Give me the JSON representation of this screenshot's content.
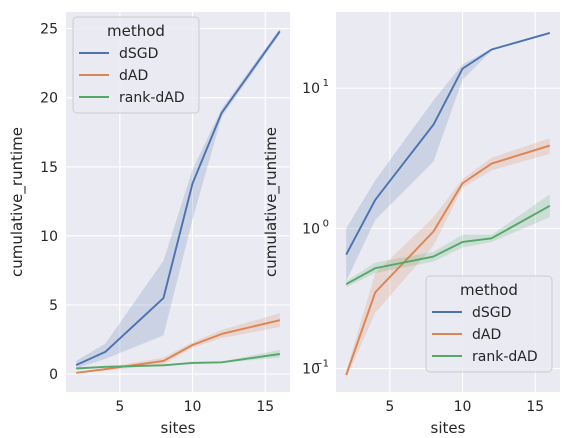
{
  "chart_data": [
    {
      "type": "line",
      "title": "",
      "xlabel": "sites",
      "ylabel": "cumulative_runtime",
      "xscale": "linear",
      "yscale": "linear",
      "xlim": [
        1.3,
        16.7
      ],
      "ylim": [
        -1.3,
        26.2
      ],
      "xticks": [
        5,
        10,
        15
      ],
      "xtick_labels": [
        "5",
        "10",
        "15"
      ],
      "yticks": [
        0,
        5,
        10,
        15,
        20,
        25
      ],
      "ytick_labels": [
        "0",
        "5",
        "10",
        "15",
        "20",
        "25"
      ],
      "grid": true,
      "legend": {
        "title": "method",
        "placement": "upper-left"
      },
      "x": [
        2,
        4,
        8,
        10,
        12,
        16
      ],
      "series": [
        {
          "name": "dSGD",
          "color": "#4c72b0",
          "values": [
            0.65,
            1.6,
            5.5,
            13.8,
            18.9,
            24.8
          ],
          "band_low": [
            0.4,
            1.1,
            2.8,
            11.2,
            18.6,
            24.6
          ],
          "band_high": [
            0.95,
            2.2,
            8.2,
            14.8,
            19.2,
            25.0
          ]
        },
        {
          "name": "dAD",
          "color": "#dd8452",
          "values": [
            0.09,
            0.35,
            0.95,
            2.1,
            2.9,
            3.9
          ],
          "band_low": [
            0.08,
            0.25,
            0.7,
            1.9,
            2.6,
            3.4
          ],
          "band_high": [
            0.1,
            0.45,
            1.2,
            2.3,
            3.2,
            4.4
          ]
        },
        {
          "name": "rank-dAD",
          "color": "#55a868",
          "values": [
            0.4,
            0.52,
            0.63,
            0.8,
            0.85,
            1.45
          ],
          "band_low": [
            0.38,
            0.48,
            0.58,
            0.72,
            0.8,
            1.2
          ],
          "band_high": [
            0.42,
            0.56,
            0.68,
            0.9,
            0.9,
            1.75
          ]
        }
      ]
    },
    {
      "type": "line",
      "title": "",
      "xlabel": "sites",
      "ylabel": "cumulative_runtime",
      "xscale": "linear",
      "yscale": "log",
      "xlim": [
        1.3,
        16.7
      ],
      "ylim": [
        0.068,
        35
      ],
      "xticks": [
        5,
        10,
        15
      ],
      "xtick_labels": [
        "5",
        "10",
        "15"
      ],
      "yticks": [
        0.1,
        1,
        10
      ],
      "ytick_labels": [
        "10",
        "10",
        "10"
      ],
      "ytick_exponents": [
        "−1",
        "0",
        "1"
      ],
      "grid": true,
      "legend": {
        "title": "method",
        "placement": "lower-right"
      },
      "x": [
        2,
        4,
        8,
        10,
        12,
        16
      ],
      "series": [
        {
          "name": "dSGD",
          "color": "#4c72b0",
          "values": [
            0.65,
            1.6,
            5.5,
            13.8,
            18.9,
            24.8
          ],
          "band_low": [
            0.42,
            1.15,
            3.0,
            11.5,
            18.6,
            24.6
          ],
          "band_high": [
            1.0,
            2.2,
            8.2,
            14.8,
            19.2,
            25.0
          ]
        },
        {
          "name": "dAD",
          "color": "#dd8452",
          "values": [
            0.09,
            0.35,
            0.95,
            2.1,
            2.9,
            3.9
          ],
          "band_low": [
            0.085,
            0.25,
            0.75,
            1.95,
            2.6,
            3.4
          ],
          "band_high": [
            0.095,
            0.48,
            1.2,
            2.25,
            3.2,
            4.4
          ]
        },
        {
          "name": "rank-dAD",
          "color": "#55a868",
          "values": [
            0.4,
            0.52,
            0.63,
            0.8,
            0.85,
            1.45
          ],
          "band_low": [
            0.38,
            0.48,
            0.58,
            0.73,
            0.8,
            1.2
          ],
          "band_high": [
            0.42,
            0.57,
            0.68,
            0.9,
            0.9,
            1.75
          ]
        }
      ]
    }
  ]
}
